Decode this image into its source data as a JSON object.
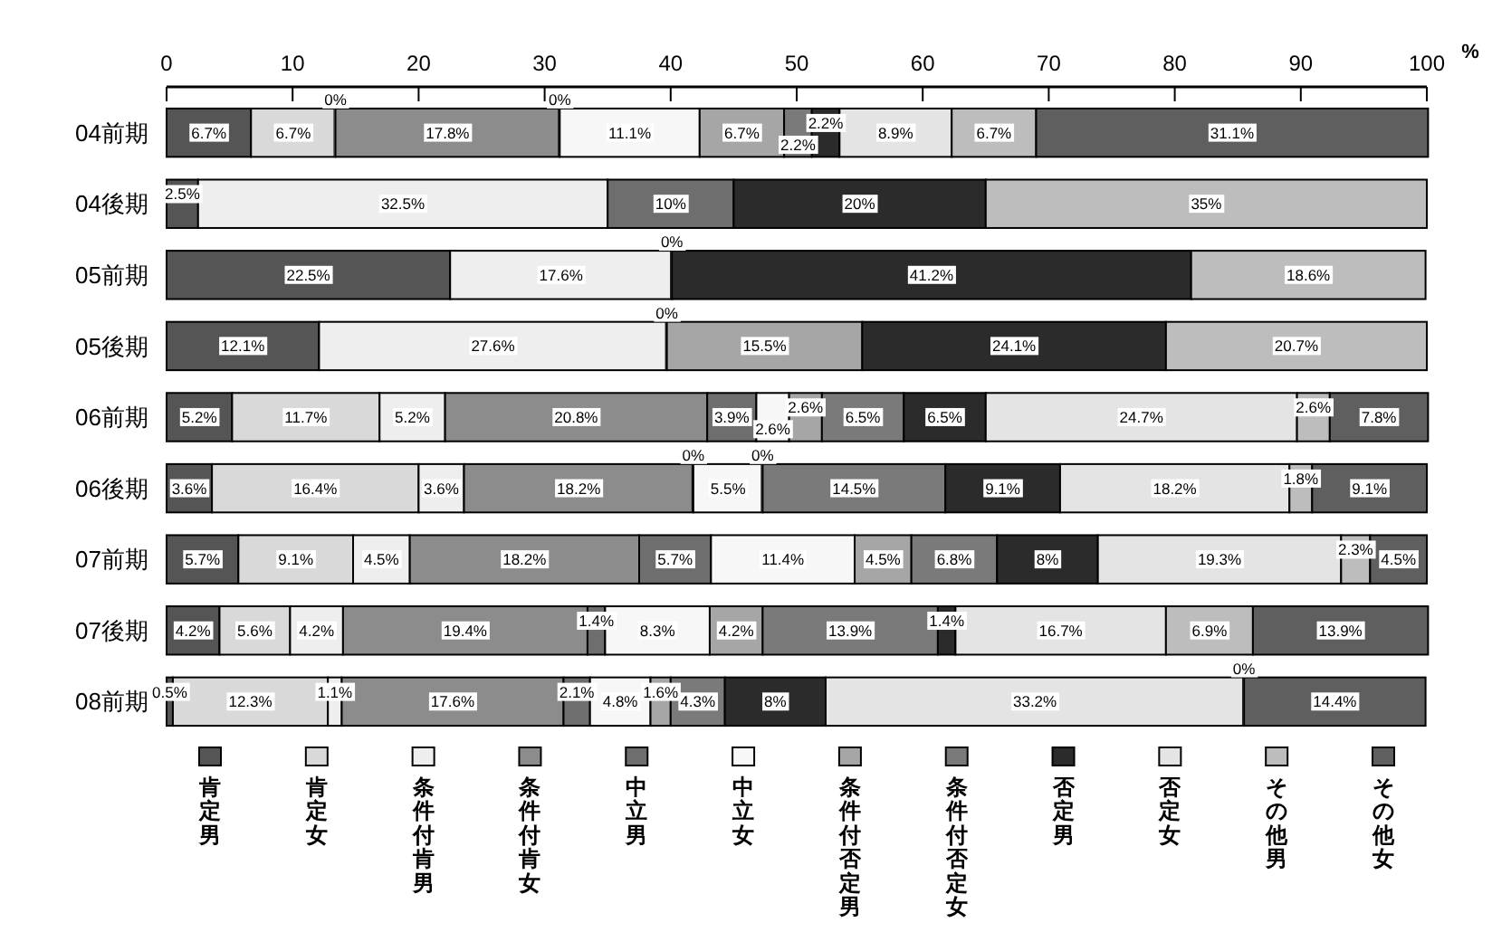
{
  "chart_data": {
    "type": "bar",
    "orientation": "horizontal",
    "stacked": true,
    "xlabel": "%",
    "categories": [
      "04前期",
      "04後期",
      "05前期",
      "05後期",
      "06前期",
      "06後期",
      "07前期",
      "07後期",
      "08前期"
    ],
    "xlim": [
      0,
      100
    ],
    "xticks": [
      0,
      10,
      20,
      30,
      40,
      50,
      60,
      70,
      80,
      90,
      100
    ],
    "grid": false,
    "legend": "bottom",
    "series": [
      {
        "name": "肯定男",
        "color": "#555555",
        "values": [
          6.7,
          2.5,
          22.5,
          12.1,
          5.2,
          3.6,
          5.7,
          4.2,
          0.5
        ],
        "value_labels": [
          "6.7%",
          "2.5%",
          "22.5%",
          "12.1%",
          "5.2%",
          "3.6%",
          "5.7%",
          "4.2%",
          "0.5%"
        ]
      },
      {
        "name": "肯定女",
        "color": "#d9d9d9",
        "values": [
          6.7,
          null,
          null,
          null,
          11.7,
          16.4,
          9.1,
          5.6,
          12.3
        ],
        "value_labels": [
          "6.7%",
          null,
          null,
          null,
          "11.7%",
          "16.4%",
          "9.1%",
          "5.6%",
          "12.3%"
        ]
      },
      {
        "name": "条件付肯男",
        "color": "#eeeeee",
        "values": [
          0,
          32.5,
          17.6,
          27.6,
          5.2,
          3.6,
          4.5,
          4.2,
          1.1
        ],
        "value_labels": [
          "0%",
          "32.5%",
          "17.6%",
          "27.6%",
          "5.2%",
          "3.6%",
          "4.5%",
          "4.2%",
          "1.1%"
        ]
      },
      {
        "name": "条件付肯女",
        "color": "#8c8c8c",
        "values": [
          17.8,
          null,
          null,
          null,
          20.8,
          18.2,
          18.2,
          19.4,
          17.6
        ],
        "value_labels": [
          "17.8%",
          null,
          null,
          null,
          "20.8%",
          "18.2%",
          "18.2%",
          "19.4%",
          "17.6%"
        ]
      },
      {
        "name": "中立男",
        "color": "#6e6e6e",
        "values": [
          0,
          10,
          0,
          0,
          3.9,
          0,
          5.7,
          1.4,
          2.1
        ],
        "value_labels": [
          "0%",
          "10%",
          "0%",
          "0%",
          "3.9%",
          "0%",
          "5.7%",
          "1.4%",
          "2.1%"
        ]
      },
      {
        "name": "中立女",
        "color": "#f7f7f7",
        "values": [
          11.1,
          null,
          null,
          null,
          2.6,
          5.5,
          11.4,
          8.3,
          4.8
        ],
        "value_labels": [
          "11.1%",
          null,
          null,
          null,
          "2.6%",
          "5.5%",
          "11.4%",
          "8.3%",
          "4.8%"
        ]
      },
      {
        "name": "条件付否定男",
        "color": "#a6a6a6",
        "values": [
          6.7,
          null,
          null,
          15.5,
          2.6,
          0,
          4.5,
          4.2,
          1.6
        ],
        "value_labels": [
          "6.7%",
          null,
          null,
          "15.5%",
          "2.6%",
          "0%",
          "4.5%",
          "4.2%",
          "1.6%"
        ]
      },
      {
        "name": "条件付否定女",
        "color": "#7a7a7a",
        "values": [
          2.2,
          null,
          null,
          null,
          6.5,
          14.5,
          6.8,
          13.9,
          4.3
        ],
        "value_labels": [
          "2.2%",
          null,
          null,
          null,
          "6.5%",
          "14.5%",
          "6.8%",
          "13.9%",
          "4.3%"
        ]
      },
      {
        "name": "否定男",
        "color": "#2b2b2b",
        "values": [
          2.2,
          20,
          41.2,
          24.1,
          6.5,
          9.1,
          8,
          1.4,
          8
        ],
        "value_labels": [
          "2.2%",
          "20%",
          "41.2%",
          "24.1%",
          "6.5%",
          "9.1%",
          "8%",
          "1.4%",
          "8%"
        ]
      },
      {
        "name": "否定女",
        "color": "#e4e4e4",
        "values": [
          8.9,
          null,
          null,
          null,
          24.7,
          18.2,
          19.3,
          16.7,
          33.2
        ],
        "value_labels": [
          "8.9%",
          null,
          null,
          null,
          "24.7%",
          "18.2%",
          "19.3%",
          "16.7%",
          "33.2%"
        ]
      },
      {
        "name": "その他男",
        "color": "#bdbdbd",
        "values": [
          6.7,
          35,
          18.6,
          20.7,
          2.6,
          1.8,
          2.3,
          6.9,
          0
        ],
        "value_labels": [
          "6.7%",
          "35%",
          "18.6%",
          "20.7%",
          "2.6%",
          "1.8%",
          "2.3%",
          "6.9%",
          "0%"
        ]
      },
      {
        "name": "その他女",
        "color": "#5f5f5f",
        "values": [
          31.1,
          null,
          null,
          null,
          7.8,
          9.1,
          4.5,
          13.9,
          14.4
        ],
        "value_labels": [
          "31.1%",
          null,
          null,
          null,
          "7.8%",
          "9.1%",
          "4.5%",
          "13.9%",
          "14.4%"
        ]
      }
    ]
  }
}
